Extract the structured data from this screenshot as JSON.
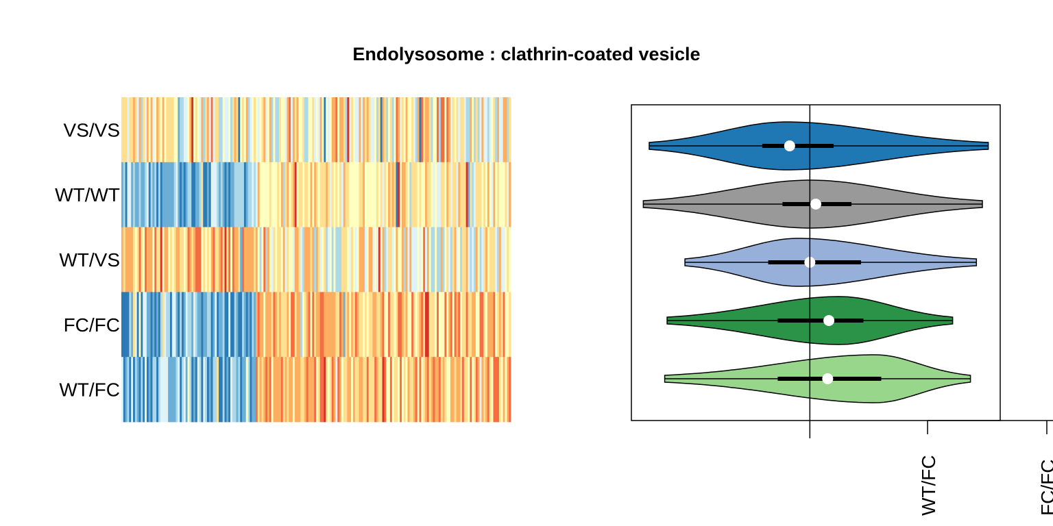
{
  "title": "Endolysosome : clathrin-coated vesicle",
  "colors": {
    "heatmap_palette": [
      "#2C7BB6",
      "#6BAED6",
      "#ABD9E9",
      "#E0F3F8",
      "#FFFFBF",
      "#FEE090",
      "#FDAE61",
      "#F46D43",
      "#D73027"
    ],
    "violins": [
      "#1F78B4",
      "#999999",
      "#97B0D9",
      "#2A9348",
      "#98D68C"
    ],
    "frame": "#000000",
    "median_dot": "#ffffff"
  },
  "chart_data": [
    {
      "type": "heatmap",
      "rows": [
        "VS/VS",
        "WT/WT",
        "WT/VS",
        "FC/FC",
        "WT/FC"
      ],
      "n_columns": 200,
      "color_scale": "RdYlBu (reversed)",
      "row_profiles": [
        {
          "row": "VS/VS",
          "left_section": "mixed",
          "right_section": "mixed"
        },
        {
          "row": "WT/WT",
          "left_section": "blue",
          "right_section": "yellow-orange"
        },
        {
          "row": "WT/VS",
          "left_section": "orange",
          "right_section": "mixed"
        },
        {
          "row": "FC/FC",
          "left_section": "blue",
          "right_section": "orange"
        },
        {
          "row": "WT/FC",
          "left_section": "blue",
          "right_section": "orange"
        }
      ]
    },
    {
      "type": "violin",
      "orientation": "horizontal",
      "x_reference": 0,
      "xlim": [
        -1.5,
        1.6
      ],
      "series": [
        {
          "name": "VS/VS",
          "min": -1.35,
          "q1": -0.4,
          "median": -0.17,
          "q3": 0.2,
          "max": 1.5,
          "mode": -0.2
        },
        {
          "name": "WT/WT",
          "min": -1.4,
          "q1": -0.23,
          "median": 0.05,
          "q3": 0.35,
          "max": 1.45,
          "mode": 0.0
        },
        {
          "name": "WT/VS",
          "min": -1.05,
          "q1": -0.35,
          "median": 0.0,
          "q3": 0.43,
          "max": 1.4,
          "mode": -0.1
        },
        {
          "name": "FC/FC",
          "min": -1.2,
          "q1": -0.27,
          "median": 0.16,
          "q3": 0.45,
          "max": 1.2,
          "mode": 0.25
        },
        {
          "name": "WT/FC",
          "min": -1.22,
          "q1": -0.27,
          "median": 0.15,
          "q3": 0.6,
          "max": 1.35,
          "mode": 0.55
        }
      ],
      "x_tick_labels": [
        "WT/FC",
        "FC/FC"
      ]
    }
  ]
}
